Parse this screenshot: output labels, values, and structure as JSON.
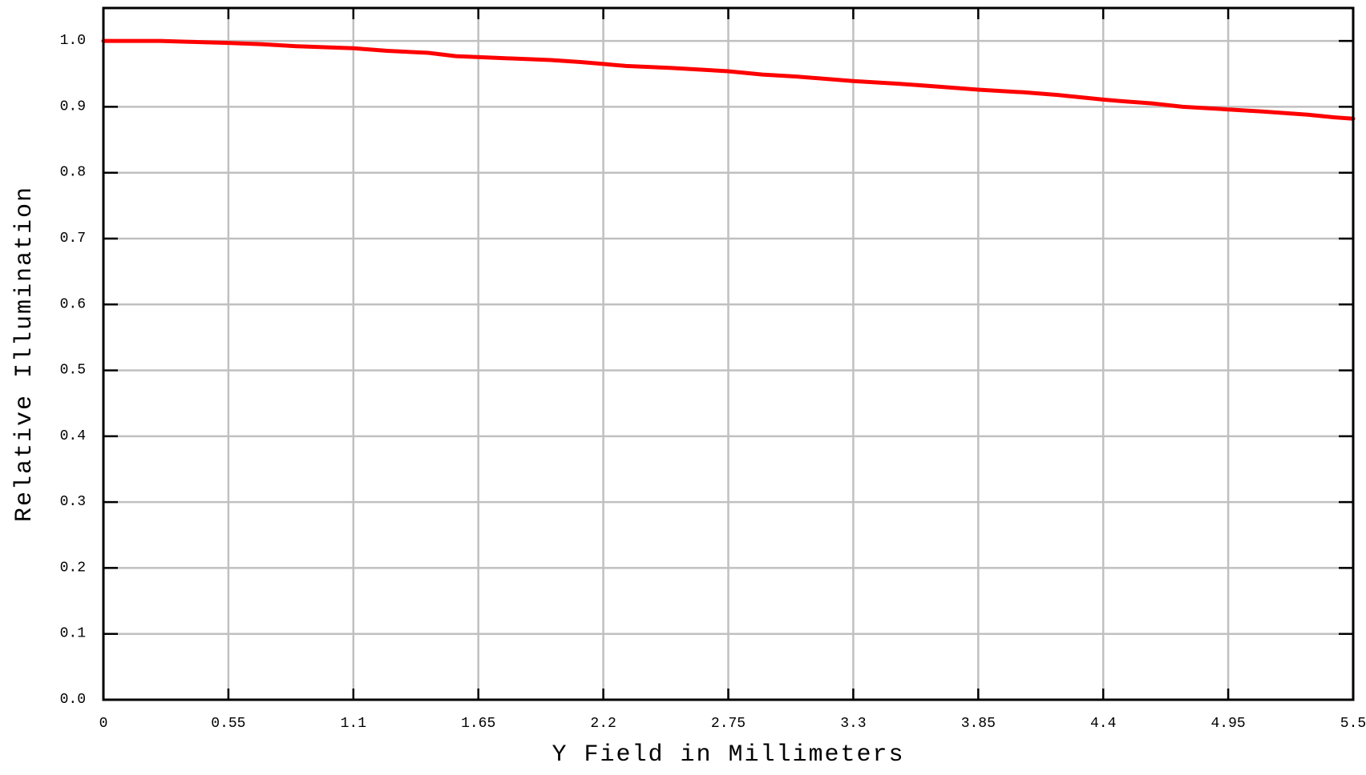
{
  "chart_data": {
    "type": "line",
    "title": "",
    "xlabel": "Y Field in Millimeters",
    "ylabel": "Relative Illumination",
    "xlim": [
      0,
      5.5
    ],
    "ylim": [
      0,
      1.05
    ],
    "xticks": [
      0,
      0.55,
      1.1,
      1.65,
      2.2,
      2.75,
      3.3,
      3.85,
      4.4,
      4.95,
      5.5
    ],
    "xtick_labels": [
      "0",
      "0.55",
      "1.1",
      "1.65",
      "2.2",
      "2.75",
      "3.3",
      "3.85",
      "4.4",
      "4.95",
      "5.5"
    ],
    "yticks": [
      0,
      0.1,
      0.2,
      0.3,
      0.4,
      0.5,
      0.6,
      0.7,
      0.8,
      0.9,
      1.0
    ],
    "ytick_labels": [
      "0.0",
      "0.1",
      "0.2",
      "0.3",
      "0.4",
      "0.5",
      "0.6",
      "0.7",
      "0.8",
      "0.9",
      "1.0"
    ],
    "grid": true,
    "grid_color": "#c0c0c0",
    "series": [
      {
        "color": "#ff0000",
        "x": [
          0,
          0.1,
          0.25,
          0.35,
          0.55,
          0.7,
          0.85,
          1.1,
          1.25,
          1.43,
          1.55,
          1.75,
          1.97,
          2.1,
          2.2,
          2.3,
          2.5,
          2.75,
          2.9,
          3.05,
          3.3,
          3.5,
          3.7,
          3.85,
          4.05,
          4.2,
          4.4,
          4.5,
          4.62,
          4.75,
          4.95,
          5.1,
          5.3,
          5.42,
          5.5
        ],
        "y": [
          1.0,
          1.0,
          1.0,
          0.999,
          0.997,
          0.995,
          0.992,
          0.989,
          0.985,
          0.982,
          0.977,
          0.974,
          0.971,
          0.968,
          0.965,
          0.962,
          0.959,
          0.954,
          0.949,
          0.946,
          0.939,
          0.935,
          0.93,
          0.926,
          0.922,
          0.918,
          0.911,
          0.908,
          0.905,
          0.9,
          0.896,
          0.893,
          0.888,
          0.884,
          0.882
        ]
      }
    ]
  }
}
